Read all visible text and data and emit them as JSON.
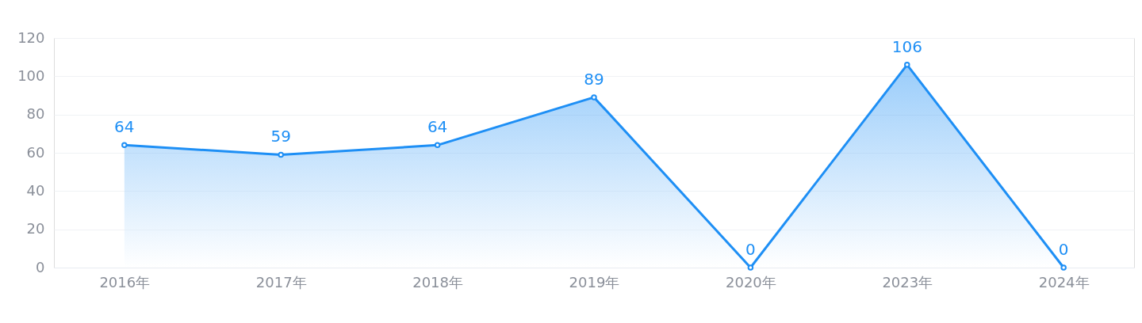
{
  "chart_data": {
    "type": "area",
    "categories": [
      "2016年",
      "2017年",
      "2018年",
      "2019年",
      "2020年",
      "2023年",
      "2024年"
    ],
    "series": [
      {
        "color": "#1e8ff5",
        "values": [
          64,
          59,
          64,
          89,
          0,
          106,
          0
        ]
      }
    ],
    "ylim": [
      0,
      120
    ],
    "yticks": [
      0,
      20,
      40,
      60,
      80,
      100,
      120
    ],
    "grid": "y",
    "marker": "circle",
    "data_labels": true
  }
}
